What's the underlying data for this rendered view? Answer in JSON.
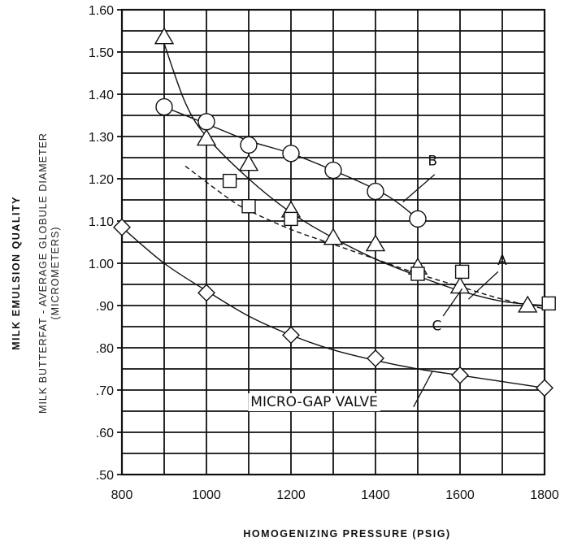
{
  "chart_data": {
    "type": "scatter",
    "title": "",
    "xlabel": "HOMOGENIZING PRESSURE (PSIG)",
    "ylabel_main": "MILK EMULSION QUALITY",
    "ylabel_sub1": "MILK BUTTERFAT - AVERAGE GLOBULE DIAMETER",
    "ylabel_sub2": "(MICROMETERS)",
    "xlim": [
      800,
      1800
    ],
    "ylim": [
      0.5,
      1.6
    ],
    "grid": true,
    "x_ticks": [
      800,
      1000,
      1200,
      1400,
      1600,
      1800
    ],
    "x_tick_labels": [
      "800",
      "1000",
      "1200",
      "1400",
      "1600",
      "1800"
    ],
    "y_ticks": [
      0.5,
      0.6,
      0.7,
      0.8,
      0.9,
      1.0,
      1.1,
      1.2,
      1.3,
      1.4,
      1.5,
      1.6
    ],
    "y_tick_labels": [
      ".50",
      ".60",
      ".70",
      ".80",
      ".90",
      "1.00",
      "1.10",
      "1.20",
      "1.30",
      "1.40",
      "1.50",
      "1.60"
    ],
    "series": [
      {
        "name": "B",
        "marker": "circle",
        "points": [
          [
            900,
            1.37
          ],
          [
            1000,
            1.335
          ],
          [
            1100,
            1.28
          ],
          [
            1200,
            1.26
          ],
          [
            1300,
            1.22
          ],
          [
            1400,
            1.17
          ],
          [
            1500,
            1.105
          ]
        ],
        "curve": [
          [
            900,
            1.37
          ],
          [
            1000,
            1.33
          ],
          [
            1100,
            1.29
          ],
          [
            1200,
            1.26
          ],
          [
            1300,
            1.22
          ],
          [
            1400,
            1.175
          ],
          [
            1450,
            1.145
          ],
          [
            1500,
            1.105
          ]
        ],
        "dashed": false
      },
      {
        "name": "C",
        "marker": "triangle",
        "points": [
          [
            900,
            1.535
          ],
          [
            1000,
            1.295
          ],
          [
            1100,
            1.235
          ],
          [
            1200,
            1.125
          ],
          [
            1300,
            1.06
          ],
          [
            1400,
            1.045
          ],
          [
            1500,
            0.99
          ],
          [
            1600,
            0.945
          ],
          [
            1760,
            0.9
          ]
        ],
        "curve": [
          [
            900,
            1.52
          ],
          [
            950,
            1.38
          ],
          [
            1000,
            1.3
          ],
          [
            1100,
            1.2
          ],
          [
            1200,
            1.12
          ],
          [
            1300,
            1.06
          ],
          [
            1400,
            1.01
          ],
          [
            1500,
            0.97
          ],
          [
            1600,
            0.935
          ],
          [
            1700,
            0.91
          ],
          [
            1800,
            0.9
          ]
        ],
        "dashed": false
      },
      {
        "name": "A",
        "marker": "square",
        "points": [
          [
            1055,
            1.195
          ],
          [
            1100,
            1.135
          ],
          [
            1200,
            1.105
          ],
          [
            1500,
            0.975
          ],
          [
            1605,
            0.98
          ],
          [
            1810,
            0.905
          ]
        ],
        "curve": [
          [
            950,
            1.23
          ],
          [
            1050,
            1.155
          ],
          [
            1100,
            1.125
          ],
          [
            1200,
            1.08
          ],
          [
            1300,
            1.045
          ],
          [
            1400,
            1.01
          ],
          [
            1500,
            0.975
          ],
          [
            1600,
            0.945
          ],
          [
            1700,
            0.915
          ],
          [
            1810,
            0.89
          ]
        ],
        "dashed": true
      },
      {
        "name": "MICRO-GAP VALVE",
        "marker": "diamond",
        "points": [
          [
            800,
            1.085
          ],
          [
            1000,
            0.93
          ],
          [
            1200,
            0.83
          ],
          [
            1400,
            0.775
          ],
          [
            1600,
            0.735
          ],
          [
            1800,
            0.705
          ]
        ],
        "curve": [
          [
            800,
            1.085
          ],
          [
            900,
            1.0
          ],
          [
            1000,
            0.935
          ],
          [
            1100,
            0.875
          ],
          [
            1200,
            0.83
          ],
          [
            1300,
            0.795
          ],
          [
            1400,
            0.77
          ],
          [
            1500,
            0.75
          ],
          [
            1600,
            0.735
          ],
          [
            1700,
            0.72
          ],
          [
            1800,
            0.705
          ]
        ],
        "dashed": false
      }
    ],
    "annotations": [
      {
        "text": "B",
        "x": 1535,
        "y": 1.245,
        "line_from": [
          1540,
          1.21
        ],
        "line_to": [
          1465,
          1.145
        ]
      },
      {
        "text": "A",
        "x": 1700,
        "y": 1.01,
        "line_from": [
          1690,
          0.98
        ],
        "line_to": [
          1620,
          0.915
        ]
      },
      {
        "text": "C",
        "x": 1545,
        "y": 0.855,
        "line_from": [
          1560,
          0.875
        ],
        "line_to": [
          1605,
          0.94
        ]
      },
      {
        "text": "MICRO-GAP VALVE",
        "x": 1255,
        "y": 0.675,
        "line_from": [
          1490,
          0.66
        ],
        "line_to": [
          1535,
          0.745
        ]
      }
    ]
  }
}
